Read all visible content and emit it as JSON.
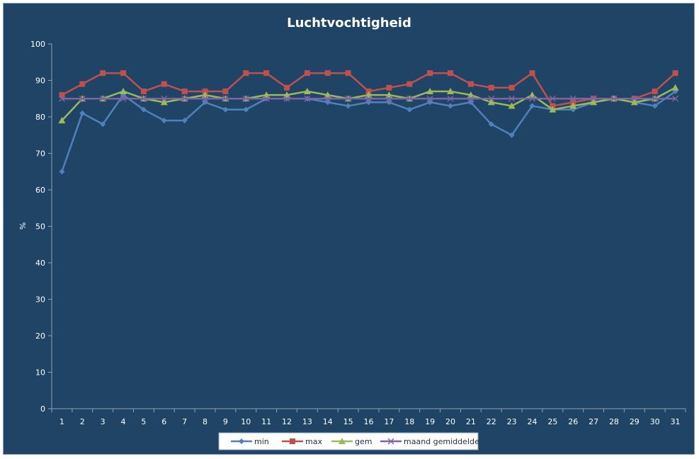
{
  "chart_data": {
    "type": "line",
    "title": "Luchtvochtigheid",
    "xlabel": "",
    "ylabel": "%",
    "ylim": [
      0,
      100
    ],
    "yticks": [
      0,
      10,
      20,
      30,
      40,
      50,
      60,
      70,
      80,
      90,
      100
    ],
    "categories": [
      "1",
      "2",
      "3",
      "4",
      "5",
      "6",
      "7",
      "8",
      "9",
      "10",
      "11",
      "12",
      "13",
      "14",
      "15",
      "16",
      "17",
      "18",
      "19",
      "20",
      "21",
      "22",
      "23",
      "24",
      "25",
      "26",
      "27",
      "28",
      "29",
      "30",
      "31"
    ],
    "grid": false,
    "legend_position": "bottom",
    "background_color": "#1f4466",
    "series": [
      {
        "name": "min",
        "color": "#4f81bd",
        "marker": "diamond",
        "values": [
          65,
          81,
          78,
          86,
          82,
          79,
          79,
          84,
          82,
          82,
          85,
          85,
          85,
          84,
          83,
          84,
          84,
          82,
          84,
          83,
          84,
          78,
          75,
          83,
          82,
          82,
          84,
          85,
          84,
          83,
          87
        ]
      },
      {
        "name": "max",
        "color": "#c0504d",
        "marker": "square",
        "values": [
          86,
          89,
          92,
          92,
          87,
          89,
          87,
          87,
          87,
          92,
          92,
          88,
          92,
          92,
          92,
          87,
          88,
          89,
          92,
          92,
          89,
          88,
          88,
          92,
          83,
          84,
          85,
          85,
          85,
          87,
          92
        ]
      },
      {
        "name": "gem",
        "color": "#9bbb59",
        "marker": "triangle",
        "values": [
          79,
          85,
          85,
          87,
          85,
          84,
          85,
          86,
          85,
          85,
          86,
          86,
          87,
          86,
          85,
          86,
          86,
          85,
          87,
          87,
          86,
          84,
          83,
          86,
          82,
          83,
          84,
          85,
          84,
          85,
          88
        ]
      },
      {
        "name": "maand gemiddelde",
        "color": "#8064a2",
        "marker": "x",
        "values": [
          85,
          85,
          85,
          85,
          85,
          85,
          85,
          85,
          85,
          85,
          85,
          85,
          85,
          85,
          85,
          85,
          85,
          85,
          85,
          85,
          85,
          85,
          85,
          85,
          85,
          85,
          85,
          85,
          85,
          85,
          85
        ]
      }
    ]
  }
}
